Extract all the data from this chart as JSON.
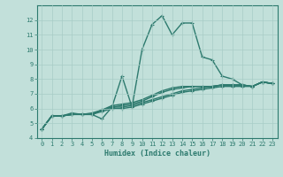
{
  "xlabel": "Humidex (Indice chaleur)",
  "bg_color": "#c2e0da",
  "line_color": "#2d7a6e",
  "grid_color": "#a8ccc6",
  "xlim": [
    -0.5,
    23.5
  ],
  "ylim": [
    4,
    13
  ],
  "yticks": [
    4,
    5,
    6,
    7,
    8,
    9,
    10,
    11,
    12
  ],
  "xticks": [
    0,
    1,
    2,
    3,
    4,
    5,
    6,
    7,
    8,
    9,
    10,
    11,
    12,
    13,
    14,
    15,
    16,
    17,
    18,
    19,
    20,
    21,
    22,
    23
  ],
  "lines": [
    {
      "x": [
        0,
        1,
        2,
        3,
        4,
        5,
        6,
        7,
        8,
        9,
        10,
        11,
        12,
        13,
        14,
        15,
        16,
        17,
        18,
        19,
        20,
        21,
        22,
        23
      ],
      "y": [
        4.6,
        5.5,
        5.5,
        5.7,
        5.6,
        5.6,
        5.3,
        6.1,
        8.2,
        6.1,
        10.0,
        11.7,
        12.3,
        11.0,
        11.8,
        11.8,
        9.5,
        9.3,
        8.2,
        8.0,
        7.6,
        7.5,
        7.8,
        7.7
      ]
    },
    {
      "x": [
        0,
        1,
        2,
        3,
        4,
        5,
        6,
        7,
        8,
        9,
        10,
        11,
        12,
        13,
        14,
        15,
        16,
        17,
        18,
        19,
        20,
        21,
        22,
        23
      ],
      "y": [
        4.6,
        5.5,
        5.5,
        5.6,
        5.6,
        5.6,
        5.8,
        6.0,
        6.0,
        6.1,
        6.3,
        6.5,
        6.7,
        6.9,
        7.1,
        7.2,
        7.3,
        7.4,
        7.5,
        7.5,
        7.5,
        7.5,
        7.8,
        7.7
      ]
    },
    {
      "x": [
        0,
        1,
        2,
        3,
        4,
        5,
        6,
        7,
        8,
        9,
        10,
        11,
        12,
        13,
        14,
        15,
        16,
        17,
        18,
        19,
        20,
        21,
        22,
        23
      ],
      "y": [
        4.6,
        5.5,
        5.5,
        5.6,
        5.6,
        5.7,
        5.9,
        6.1,
        6.1,
        6.2,
        6.4,
        6.6,
        6.8,
        7.0,
        7.2,
        7.3,
        7.4,
        7.5,
        7.6,
        7.6,
        7.6,
        7.5,
        7.8,
        7.7
      ]
    },
    {
      "x": [
        0,
        1,
        2,
        3,
        4,
        5,
        6,
        7,
        8,
        9,
        10,
        11,
        12,
        13,
        14,
        15,
        16,
        17,
        18,
        19,
        20,
        21,
        22,
        23
      ],
      "y": [
        4.6,
        5.5,
        5.5,
        5.6,
        5.6,
        5.6,
        5.9,
        6.1,
        6.2,
        6.3,
        6.5,
        6.8,
        7.1,
        7.3,
        7.4,
        7.5,
        7.5,
        7.5,
        7.6,
        7.6,
        7.6,
        7.5,
        7.8,
        7.7
      ]
    },
    {
      "x": [
        0,
        1,
        2,
        3,
        4,
        5,
        6,
        7,
        8,
        9,
        10,
        11,
        12,
        13,
        14,
        15,
        16,
        17,
        18,
        19,
        20,
        21,
        22,
        23
      ],
      "y": [
        4.6,
        5.5,
        5.5,
        5.6,
        5.6,
        5.6,
        5.9,
        6.2,
        6.3,
        6.4,
        6.6,
        6.9,
        7.2,
        7.4,
        7.5,
        7.5,
        7.5,
        7.5,
        7.6,
        7.6,
        7.6,
        7.5,
        7.8,
        7.7
      ]
    }
  ]
}
